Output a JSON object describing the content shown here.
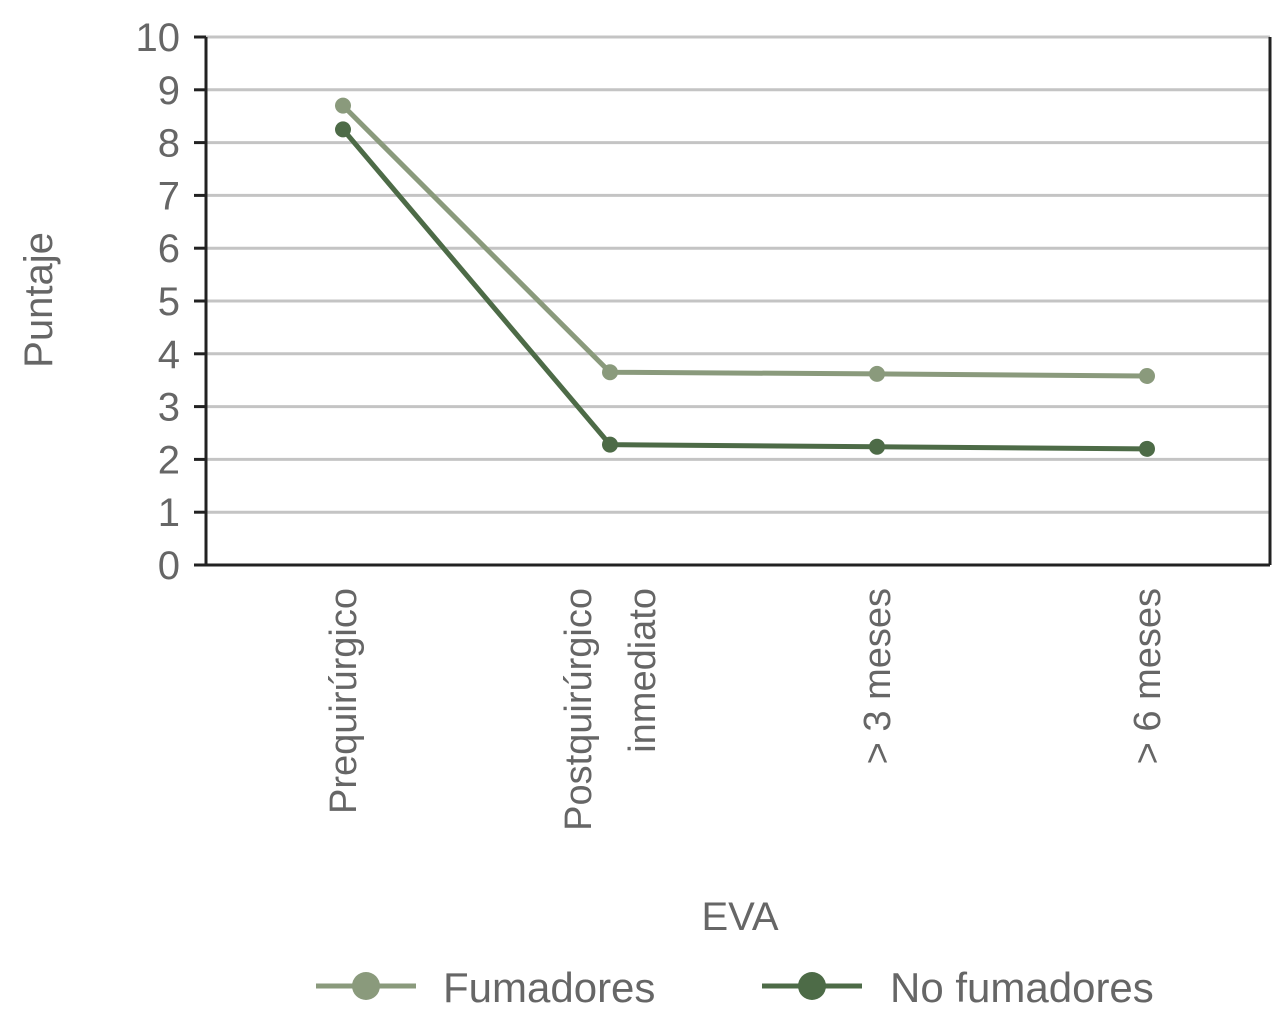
{
  "chart_data": {
    "type": "line",
    "title": "",
    "xlabel": "EVA",
    "ylabel": "Puntaje",
    "ylim": [
      0,
      10
    ],
    "yticks": [
      0,
      1,
      2,
      3,
      4,
      5,
      6,
      7,
      8,
      9,
      10
    ],
    "grid": true,
    "categories": [
      [
        "Prequirúrgico"
      ],
      [
        "Postquirúrgico",
        "inmediato"
      ],
      [
        "> 3 meses"
      ],
      [
        "> 6 meses"
      ]
    ],
    "series": [
      {
        "name": "Fumadores",
        "color": "#8a9a7c",
        "values": [
          8.7,
          3.65,
          3.62,
          3.58
        ]
      },
      {
        "name": "No fumadores",
        "color": "#4d6b47",
        "values": [
          8.25,
          2.28,
          2.24,
          2.2
        ]
      }
    ],
    "legend": "bottom"
  }
}
